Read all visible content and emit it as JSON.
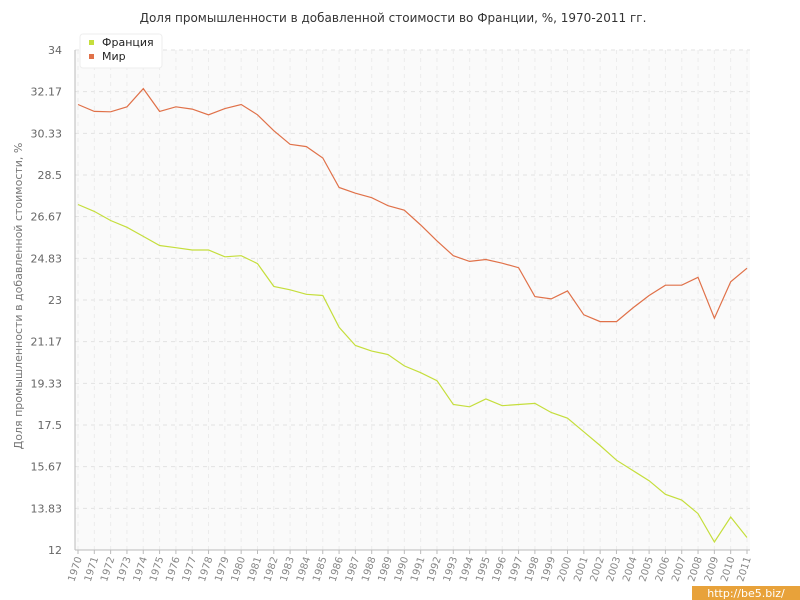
{
  "chart_data": {
    "type": "line",
    "title": "Доля промышленности в добавленной стоимости во Франции, %, 1970-2011 гг.",
    "xlabel": "",
    "ylabel": "Доля промышленности в добавленной стоимости, %",
    "ylim": [
      12,
      34
    ],
    "yticks": [
      "12",
      "13.83",
      "15.67",
      "17.5",
      "19.33",
      "21.17",
      "23",
      "24.83",
      "26.67",
      "28.5",
      "30.33",
      "32.17",
      "34"
    ],
    "x": [
      "1970",
      "1971",
      "1972",
      "1973",
      "1974",
      "1975",
      "1976",
      "1977",
      "1978",
      "1979",
      "1980",
      "1981",
      "1982",
      "1983",
      "1984",
      "1985",
      "1986",
      "1987",
      "1988",
      "1989",
      "1990",
      "1991",
      "1992",
      "1993",
      "1994",
      "1995",
      "1996",
      "1997",
      "1998",
      "1999",
      "2000",
      "2001",
      "2002",
      "2003",
      "2004",
      "2005",
      "2006",
      "2007",
      "2008",
      "2009",
      "2010",
      "2011"
    ],
    "grid": true,
    "legend_position": "top-left",
    "series": [
      {
        "name": "Франция",
        "color": "#c5de3c",
        "values": [
          27.2,
          26.9,
          26.5,
          26.2,
          25.8,
          25.4,
          25.3,
          25.2,
          25.2,
          24.9,
          24.95,
          24.6,
          23.6,
          23.45,
          23.25,
          23.2,
          21.8,
          21.0,
          20.75,
          20.6,
          20.1,
          19.8,
          19.45,
          18.4,
          18.3,
          18.65,
          18.35,
          18.4,
          18.45,
          18.05,
          17.8,
          17.2,
          16.6,
          15.95,
          15.5,
          15.05,
          14.45,
          14.2,
          13.6,
          12.35,
          13.45,
          12.55
        ]
      },
      {
        "name": "Мир",
        "color": "#e07149",
        "values": [
          31.6,
          31.3,
          31.28,
          31.5,
          32.3,
          31.3,
          31.5,
          31.4,
          31.15,
          31.42,
          31.6,
          31.15,
          30.45,
          29.85,
          29.75,
          29.25,
          27.95,
          27.7,
          27.5,
          27.15,
          26.95,
          26.3,
          25.6,
          24.95,
          24.7,
          24.78,
          24.62,
          24.42,
          23.15,
          23.05,
          23.4,
          22.35,
          22.05,
          22.05,
          22.65,
          23.2,
          23.65,
          23.65,
          24.0,
          22.2,
          23.8,
          24.4
        ]
      }
    ]
  },
  "watermark": "http://be5.biz/"
}
